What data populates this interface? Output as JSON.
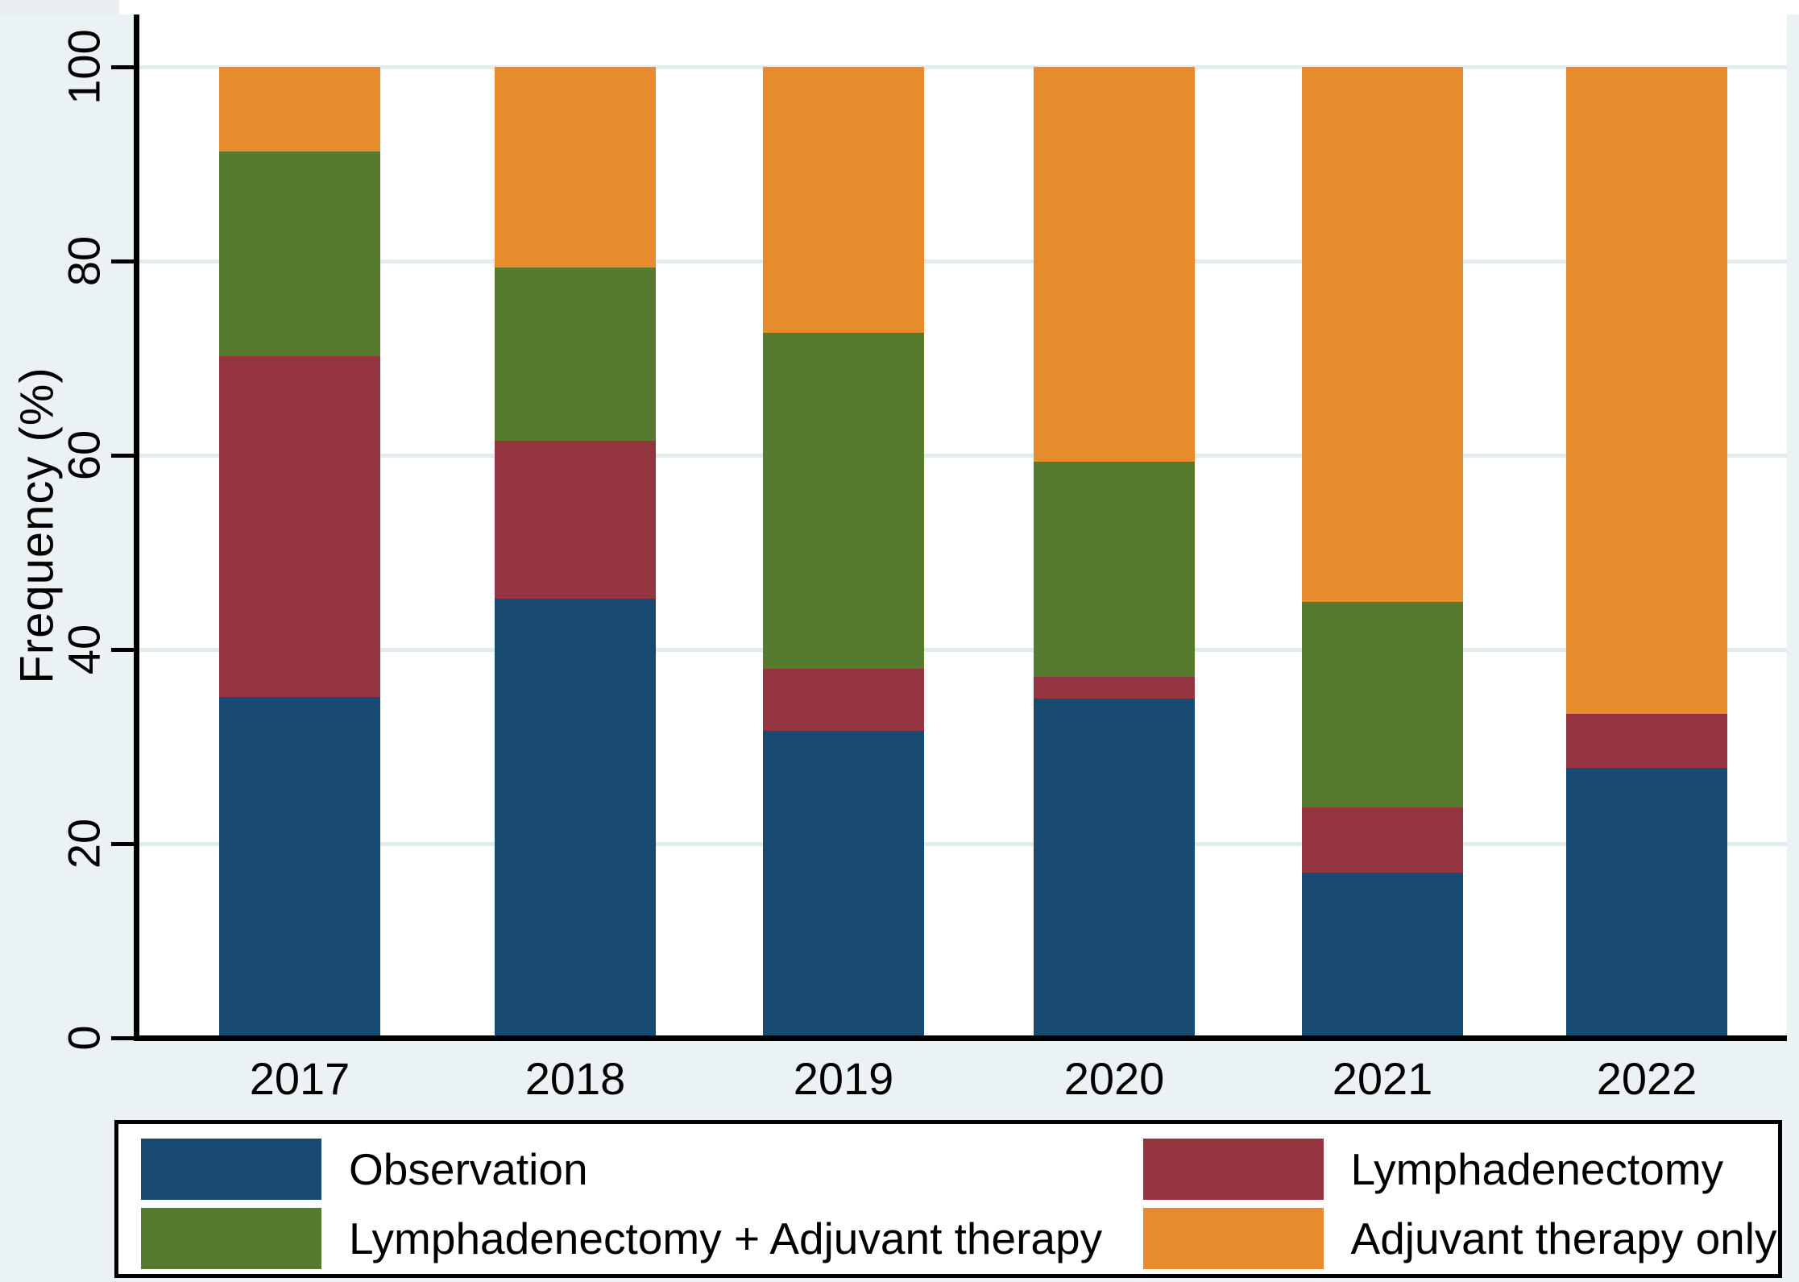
{
  "chart_data": {
    "type": "bar",
    "stacked": true,
    "title": "",
    "xlabel": "",
    "ylabel": "Frequency (%)",
    "ylim": [
      0,
      100
    ],
    "yticks": [
      0,
      20,
      40,
      60,
      80,
      100
    ],
    "grid": true,
    "legend_position": "bottom",
    "categories": [
      "2017",
      "2018",
      "2019",
      "2020",
      "2021",
      "2022"
    ],
    "series": [
      {
        "name": "Observation",
        "color": "#174971",
        "values": [
          35.1,
          45.2,
          31.6,
          34.9,
          17.0,
          27.8
        ]
      },
      {
        "name": "Lymphadenectomy",
        "color": "#933440",
        "values": [
          35.1,
          16.3,
          6.4,
          2.3,
          6.7,
          5.6
        ]
      },
      {
        "name": "Lymphadenectomy + Adjuvant therapy",
        "color": "#567B2F",
        "values": [
          21.1,
          17.8,
          34.6,
          22.1,
          21.2,
          0.0
        ]
      },
      {
        "name": "Adjuvant therapy only",
        "color": "#E78C2D",
        "values": [
          8.7,
          20.7,
          27.4,
          40.7,
          55.1,
          66.6
        ]
      }
    ]
  },
  "axes": {
    "y_axis_title": "Frequency (%)",
    "y_tick_labels": [
      "0",
      "20",
      "40",
      "60",
      "80",
      "100"
    ],
    "x_tick_labels": [
      "2017",
      "2018",
      "2019",
      "2020",
      "2021",
      "2022"
    ]
  },
  "legend": {
    "items": [
      {
        "label": "Observation",
        "color": "#174971"
      },
      {
        "label": "Lymphadenectomy",
        "color": "#933440"
      },
      {
        "label": "Lymphadenectomy + Adjuvant therapy",
        "color": "#567B2F"
      },
      {
        "label": "Adjuvant therapy only",
        "color": "#E78C2D"
      }
    ]
  },
  "colors": {
    "background": "#EAF2F3",
    "plot_background": "#FFFFFF",
    "gridline": "#E2ECEF",
    "axis": "#000000",
    "text": "#000000"
  }
}
